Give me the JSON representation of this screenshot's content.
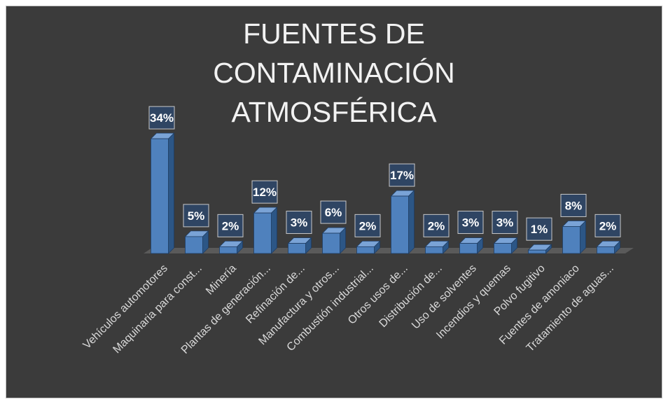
{
  "chart_data": {
    "type": "bar3d",
    "title": "FUENTES DE CONTAMINACIÓN ATMOSFÉRICA",
    "categories": [
      "Vehículos automotores",
      "Maquinaria para const...",
      "Minería",
      "Plantas de generación...",
      "Refinación de...",
      "Manufactura y otros...",
      "Combustión industrial...",
      "Otros usos de...",
      "Distribución de...",
      "Uso de solventes",
      "Incendios y quemas",
      "Polvo fugitivo",
      "Fuentes de amoniaco",
      "Tratamiento de aguas..."
    ],
    "values": [
      34,
      5,
      2,
      12,
      3,
      6,
      2,
      17,
      2,
      3,
      3,
      1,
      8,
      2
    ],
    "value_labels": [
      "34%",
      "5%",
      "2%",
      "12%",
      "3%",
      "6%",
      "2%",
      "17%",
      "2%",
      "3%",
      "3%",
      "1%",
      "8%",
      "2%"
    ],
    "color": "#4f81bd"
  }
}
